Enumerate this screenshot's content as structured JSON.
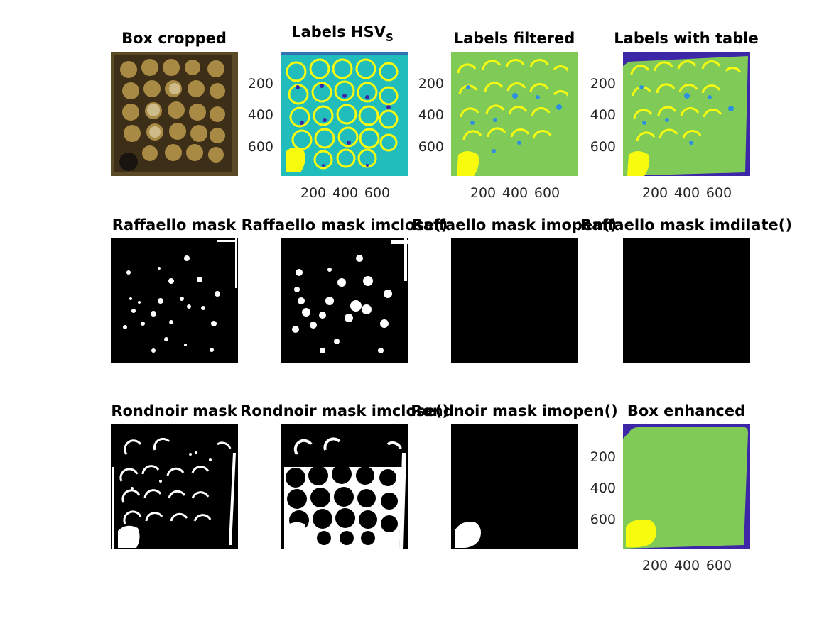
{
  "figure": {
    "panels": [
      {
        "id": "box-cropped",
        "title": "Box cropped",
        "kind": "photo"
      },
      {
        "id": "labels-hsv",
        "title": "Labels HSV",
        "title_sub": "S",
        "kind": "labels-hsv"
      },
      {
        "id": "labels-filtered",
        "title": "Labels filtered",
        "kind": "labels-filtered"
      },
      {
        "id": "labels-with-table",
        "title": "Labels with table",
        "kind": "labels-table"
      },
      {
        "id": "raffaello-mask",
        "title": "Raffaello mask",
        "kind": "mask-spots"
      },
      {
        "id": "raffaello-imclose",
        "title": "Raffaello mask imclose()",
        "kind": "mask-spots-closed"
      },
      {
        "id": "raffaello-imopen",
        "title": "Raffaello mask imopen()",
        "kind": "mask-empty"
      },
      {
        "id": "raffaello-imdilate",
        "title": "Raffaello mask imdilate()",
        "kind": "mask-empty"
      },
      {
        "id": "rondnoir-mask",
        "title": "Rondnoir mask",
        "kind": "mask-arcs"
      },
      {
        "id": "rondnoir-imclose",
        "title": "Rondnoir mask imclose()",
        "kind": "mask-blobs"
      },
      {
        "id": "rondnoir-imopen",
        "title": "Rondnoir mask imopen()",
        "kind": "mask-corner-blob"
      },
      {
        "id": "box-enhanced",
        "title": "Box enhanced",
        "kind": "enhanced"
      }
    ],
    "axis_ticks": {
      "y": [
        "200",
        "400",
        "600"
      ],
      "x": [
        "200",
        "400",
        "600"
      ]
    },
    "colors": {
      "parula_blue": "#3e26a8",
      "parula_teal": "#21bcbc",
      "parula_green": "#80cb58",
      "parula_yellow": "#f9fb0e",
      "parula_midblue": "#2e8fde",
      "mask_bg": "#000000",
      "mask_fg": "#ffffff"
    }
  }
}
